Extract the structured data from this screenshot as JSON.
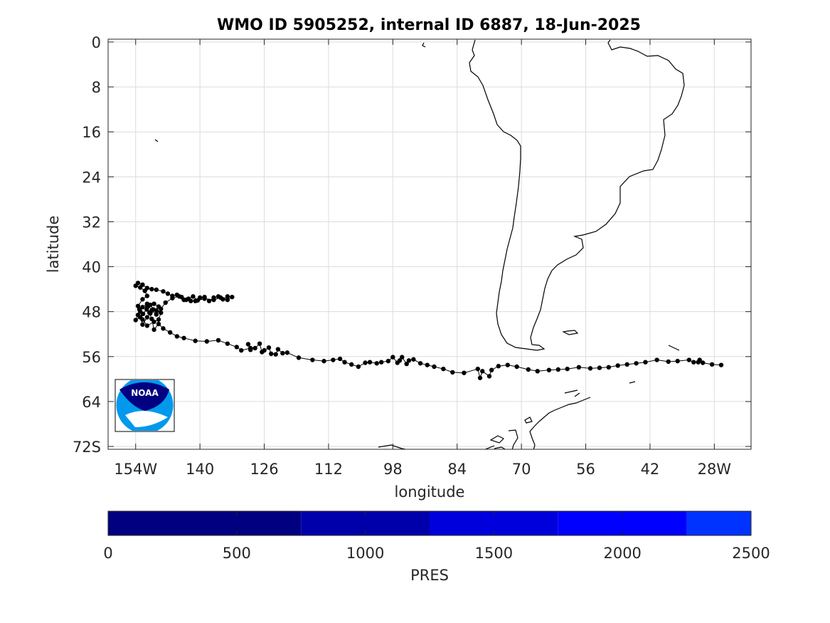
{
  "chart_data": {
    "type": "map-trajectory",
    "title": "WMO ID 5905252, internal ID 6887, 18-Jun-2025",
    "xlabel": "longitude",
    "ylabel": "latitude",
    "xlim": [
      -160,
      -20
    ],
    "ylim": [
      -72.5,
      0.5
    ],
    "x_ticks": [
      {
        "value": -154,
        "label": "154W"
      },
      {
        "value": -140,
        "label": "140"
      },
      {
        "value": -126,
        "label": "126"
      },
      {
        "value": -112,
        "label": "112"
      },
      {
        "value": -98,
        "label": "98"
      },
      {
        "value": -84,
        "label": "84"
      },
      {
        "value": -70,
        "label": "70"
      },
      {
        "value": -56,
        "label": "56"
      },
      {
        "value": -42,
        "label": "42"
      },
      {
        "value": -28,
        "label": "28W"
      }
    ],
    "y_ticks": [
      {
        "value": 0,
        "label": "0"
      },
      {
        "value": -8,
        "label": "8"
      },
      {
        "value": -16,
        "label": "16"
      },
      {
        "value": -24,
        "label": "24"
      },
      {
        "value": -32,
        "label": "32"
      },
      {
        "value": -40,
        "label": "40"
      },
      {
        "value": -48,
        "label": "48"
      },
      {
        "value": -56,
        "label": "56"
      },
      {
        "value": -64,
        "label": "64"
      },
      {
        "value": -72,
        "label": "72S"
      }
    ],
    "grid": true,
    "marker_color": "#000000",
    "track": [
      [
        -26.5,
        -57.5
      ],
      [
        -28.5,
        -57.4
      ],
      [
        -30.5,
        -57.1
      ],
      [
        -31.2,
        -56.6
      ],
      [
        -31.5,
        -57.0
      ],
      [
        -32.5,
        -57.0
      ],
      [
        -33.5,
        -56.6
      ],
      [
        -36,
        -56.8
      ],
      [
        -38,
        -56.9
      ],
      [
        -40.5,
        -56.6
      ],
      [
        -43,
        -57.0
      ],
      [
        -45,
        -57.2
      ],
      [
        -47,
        -57.4
      ],
      [
        -49,
        -57.6
      ],
      [
        -51,
        -57.9
      ],
      [
        -53,
        -58.0
      ],
      [
        -55,
        -58.1
      ],
      [
        -57.5,
        -57.9
      ],
      [
        -60,
        -58.2
      ],
      [
        -62,
        -58.3
      ],
      [
        -64,
        -58.4
      ],
      [
        -66.5,
        -58.6
      ],
      [
        -68.5,
        -58.3
      ],
      [
        -71,
        -57.8
      ],
      [
        -73,
        -57.5
      ],
      [
        -75,
        -57.7
      ],
      [
        -76.5,
        -58.4
      ],
      [
        -77,
        -59.5
      ],
      [
        -78.5,
        -58.6
      ],
      [
        -79,
        -59.8
      ],
      [
        -79.5,
        -58.2
      ],
      [
        -82.5,
        -58.9
      ],
      [
        -85,
        -58.8
      ],
      [
        -87,
        -58.2
      ],
      [
        -89,
        -57.8
      ],
      [
        -90.5,
        -57.5
      ],
      [
        -92,
        -57.2
      ],
      [
        -93.5,
        -56.5
      ],
      [
        -94.5,
        -56.7
      ],
      [
        -95,
        -57.3
      ],
      [
        -96,
        -56.1
      ],
      [
        -96.5,
        -56.7
      ],
      [
        -97,
        -57.1
      ],
      [
        -98,
        -56.1
      ],
      [
        -99,
        -56.8
      ],
      [
        -100.5,
        -57.0
      ],
      [
        -101.5,
        -57.2
      ],
      [
        -103,
        -57.0
      ],
      [
        -104,
        -57.1
      ],
      [
        -105.5,
        -57.8
      ],
      [
        -107,
        -57.4
      ],
      [
        -108.5,
        -57.0
      ],
      [
        -109.5,
        -56.4
      ],
      [
        -111,
        -56.6
      ],
      [
        -113,
        -56.8
      ],
      [
        -115.5,
        -56.6
      ],
      [
        -118.5,
        -56.2
      ],
      [
        -121,
        -55.3
      ],
      [
        -122,
        -55.4
      ],
      [
        -123,
        -54.7
      ],
      [
        -123.5,
        -55.6
      ],
      [
        -124.5,
        -55.5
      ],
      [
        -125,
        -54.4
      ],
      [
        -126,
        -54.9
      ],
      [
        -126.5,
        -55.2
      ],
      [
        -127,
        -53.7
      ],
      [
        -128,
        -54.5
      ],
      [
        -129,
        -54.8
      ],
      [
        -129.5,
        -53.8
      ],
      [
        -129,
        -54.5
      ],
      [
        -131,
        -54.9
      ],
      [
        -132,
        -54.3
      ],
      [
        -134,
        -53.7
      ],
      [
        -136,
        -53.1
      ],
      [
        -138.5,
        -53.3
      ],
      [
        -141,
        -53.2
      ],
      [
        -143.5,
        -52.7
      ],
      [
        -145,
        -52.4
      ],
      [
        -146.5,
        -51.7
      ],
      [
        -148,
        -51.0
      ],
      [
        -149,
        -50.2
      ],
      [
        -150,
        -51.2
      ],
      [
        -150.5,
        -49.3
      ],
      [
        -151,
        -48.2
      ],
      [
        -151.5,
        -47.2
      ],
      [
        -150,
        -46.6
      ],
      [
        -149,
        -47.1
      ],
      [
        -149.5,
        -47.8
      ],
      [
        -148.5,
        -48.2
      ],
      [
        -149,
        -49.4
      ],
      [
        -150,
        -49.8
      ],
      [
        -151.5,
        -50.5
      ],
      [
        -152.5,
        -49.4
      ],
      [
        -153,
        -48.0
      ],
      [
        -153.5,
        -47.0
      ],
      [
        -152.5,
        -45.8
      ],
      [
        -151.5,
        -45.2
      ],
      [
        -152,
        -44.3
      ],
      [
        -153,
        -43.7
      ],
      [
        -154,
        -43.4
      ],
      [
        -153.5,
        -42.9
      ],
      [
        -152.5,
        -43.2
      ],
      [
        -151.5,
        -43.8
      ],
      [
        -150.5,
        -44.0
      ],
      [
        -149.5,
        -44.1
      ],
      [
        -148,
        -44.4
      ],
      [
        -147,
        -44.8
      ],
      [
        -146,
        -45.2
      ],
      [
        -145,
        -45.0
      ],
      [
        -144,
        -45.4
      ],
      [
        -143,
        -45.9
      ],
      [
        -142,
        -46.1
      ],
      [
        -141,
        -46.1
      ],
      [
        -140,
        -45.5
      ],
      [
        -139,
        -45.4
      ],
      [
        -138,
        -46.1
      ],
      [
        -137,
        -45.5
      ],
      [
        -136,
        -45.3
      ],
      [
        -135,
        -45.8
      ],
      [
        -134,
        -45.3
      ],
      [
        -133,
        -45.4
      ],
      [
        -134,
        -45.9
      ],
      [
        -135.5,
        -45.5
      ],
      [
        -137,
        -45.9
      ],
      [
        -139,
        -45.7
      ],
      [
        -140.5,
        -46.0
      ],
      [
        -141.5,
        -45.3
      ],
      [
        -142.5,
        -45.7
      ],
      [
        -143.5,
        -45.9
      ],
      [
        -144.5,
        -45.3
      ],
      [
        -146,
        -45.6
      ],
      [
        -147.5,
        -46.4
      ],
      [
        -148.5,
        -47.5
      ],
      [
        -149.5,
        -48.5
      ],
      [
        -150.5,
        -47.8
      ],
      [
        -151.5,
        -46.6
      ],
      [
        -152.5,
        -47.2
      ],
      [
        -153.5,
        -48.6
      ],
      [
        -154,
        -49.5
      ],
      [
        -153,
        -49.0
      ],
      [
        -152.5,
        -50.3
      ],
      [
        -151.5,
        -49.0
      ],
      [
        -150.8,
        -48.3
      ],
      [
        -150.2,
        -47.6
      ],
      [
        -150.8,
        -46.8
      ],
      [
        -151.6,
        -47.6
      ],
      [
        -152.4,
        -48.4
      ],
      [
        -153.2,
        -47.6
      ]
    ],
    "colorbar": {
      "label": "PRES",
      "range": [
        0,
        2500
      ],
      "ticks": [
        0,
        500,
        1000,
        1500,
        2000,
        2500
      ],
      "segments": [
        {
          "from": 0,
          "to": 750,
          "color": "#000080"
        },
        {
          "from": 750,
          "to": 1250,
          "color": "#0000aa"
        },
        {
          "from": 1250,
          "to": 1750,
          "color": "#0000dd"
        },
        {
          "from": 1750,
          "to": 2250,
          "color": "#0000ff"
        },
        {
          "from": 2250,
          "to": 2500,
          "color": "#0033ff"
        }
      ]
    },
    "logo": {
      "text": "NOAA",
      "top_color": "#000080",
      "bottom_color": "#0099ee"
    }
  }
}
